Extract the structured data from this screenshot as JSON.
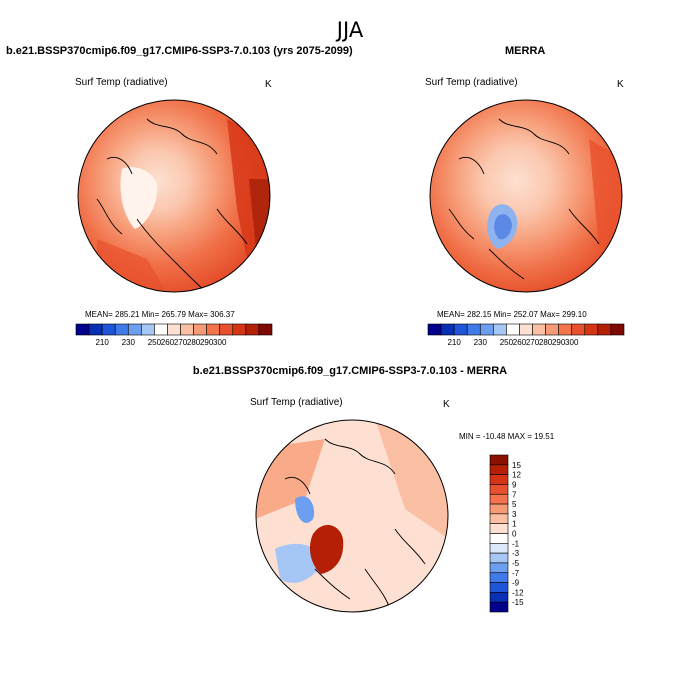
{
  "figure": {
    "title": "JJA",
    "panels": [
      {
        "id": "model",
        "header": "b.e21.BSSP370cmip6.f09_g17.CMIP6-SSP3-7.0.103 (yrs 2075-2099)",
        "variable": "Surf Temp (radiative)",
        "units": "K",
        "stats": "MEAN= 285.21  Min= 265.79  Max= 306.37"
      },
      {
        "id": "obs",
        "header": "MERRA",
        "variable": "Surf Temp (radiative)",
        "units": "K",
        "stats": "MEAN= 282.15  Min= 252.07  Max= 299.10"
      },
      {
        "id": "diff",
        "header": "b.e21.BSSP370cmip6.f09_g17.CMIP6-SSP3-7.0.103 - MERRA",
        "variable": "Surf Temp (radiative)",
        "units": "K",
        "stats": "MIN = -10.48 MAX =  19.51"
      }
    ]
  },
  "colorbar_abs": {
    "colors": [
      "#00008b",
      "#0a2fb5",
      "#1f55d8",
      "#3f7be8",
      "#6d9ff0",
      "#a6c6f5",
      "#ffffff",
      "#fde0d2",
      "#fbbfa4",
      "#f79a76",
      "#f3734e",
      "#e8512d",
      "#d63515",
      "#b41f06",
      "#7d0a00"
    ],
    "ticks": [
      "210",
      "230",
      "250",
      "260",
      "270",
      "280",
      "290",
      "300"
    ]
  },
  "colorbar_diff": {
    "colors": [
      "#00008b",
      "#0a2fb5",
      "#1f55d8",
      "#3f7be8",
      "#6d9ff0",
      "#a6c6f5",
      "#dce9fb",
      "#ffffff",
      "#fde0d2",
      "#fbbfa4",
      "#f79a76",
      "#f3734e",
      "#e8512d",
      "#d63515",
      "#b41f06",
      "#8b1000"
    ],
    "ticks": [
      "15",
      "12",
      "9",
      "7",
      "5",
      "3",
      "1",
      "0",
      "-1",
      "-3",
      "-5",
      "-7",
      "-9",
      "-12",
      "-15"
    ]
  }
}
